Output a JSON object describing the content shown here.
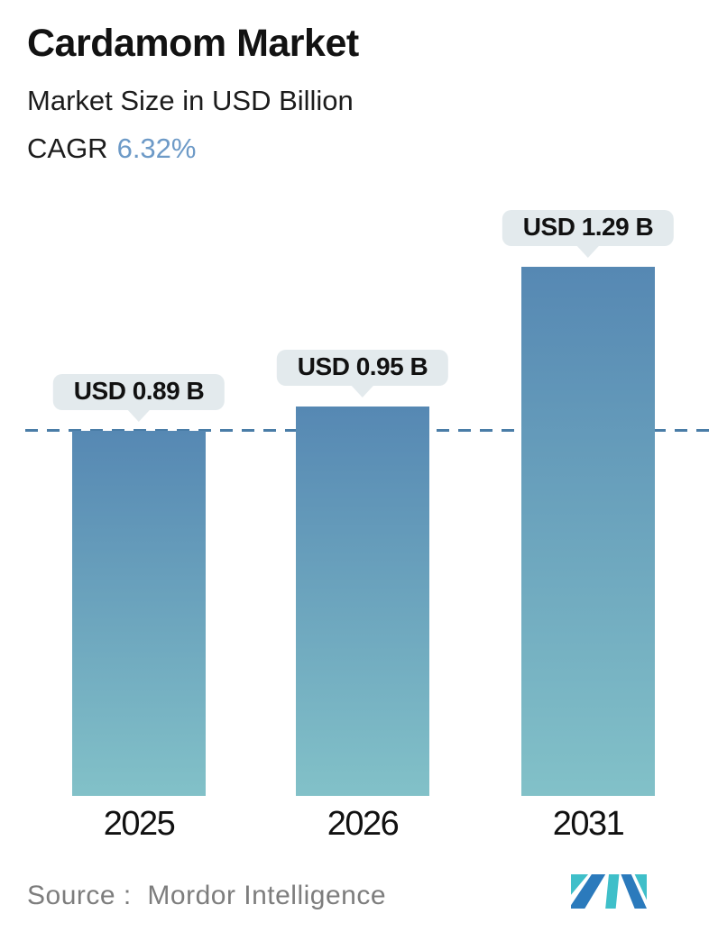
{
  "header": {
    "title": "Cardamom Market",
    "subtitle": "Market Size in USD Billion",
    "cagr_label": "CAGR",
    "cagr_value": "6.32%"
  },
  "chart_data": {
    "type": "bar",
    "title": "Cardamom Market",
    "ylabel": "Market Size in USD Billion",
    "categories": [
      "2025",
      "2026",
      "2031"
    ],
    "values": [
      0.89,
      0.95,
      1.29
    ],
    "bar_labels": [
      "USD 0.89 B",
      "USD 0.95 B",
      "USD 1.29 B"
    ],
    "ylim": [
      0,
      1.29
    ],
    "grid": false,
    "legend": false,
    "reference_line": {
      "value": 0.89,
      "style": "dashed"
    },
    "colors": {
      "bar_gradient_top": "#5688b3",
      "bar_gradient_bottom": "#82c1c8",
      "dashed_line": "#4a7da7",
      "label_bubble_bg": "#e3eaed",
      "cagr_accent": "#6d9ac7",
      "logo_blue": "#2b7abc",
      "logo_teal": "#3fbfc9"
    }
  },
  "footer": {
    "source_label": "Source :",
    "source_value": "Mordor Intelligence",
    "logo_name": "mordor-intelligence-logo"
  }
}
